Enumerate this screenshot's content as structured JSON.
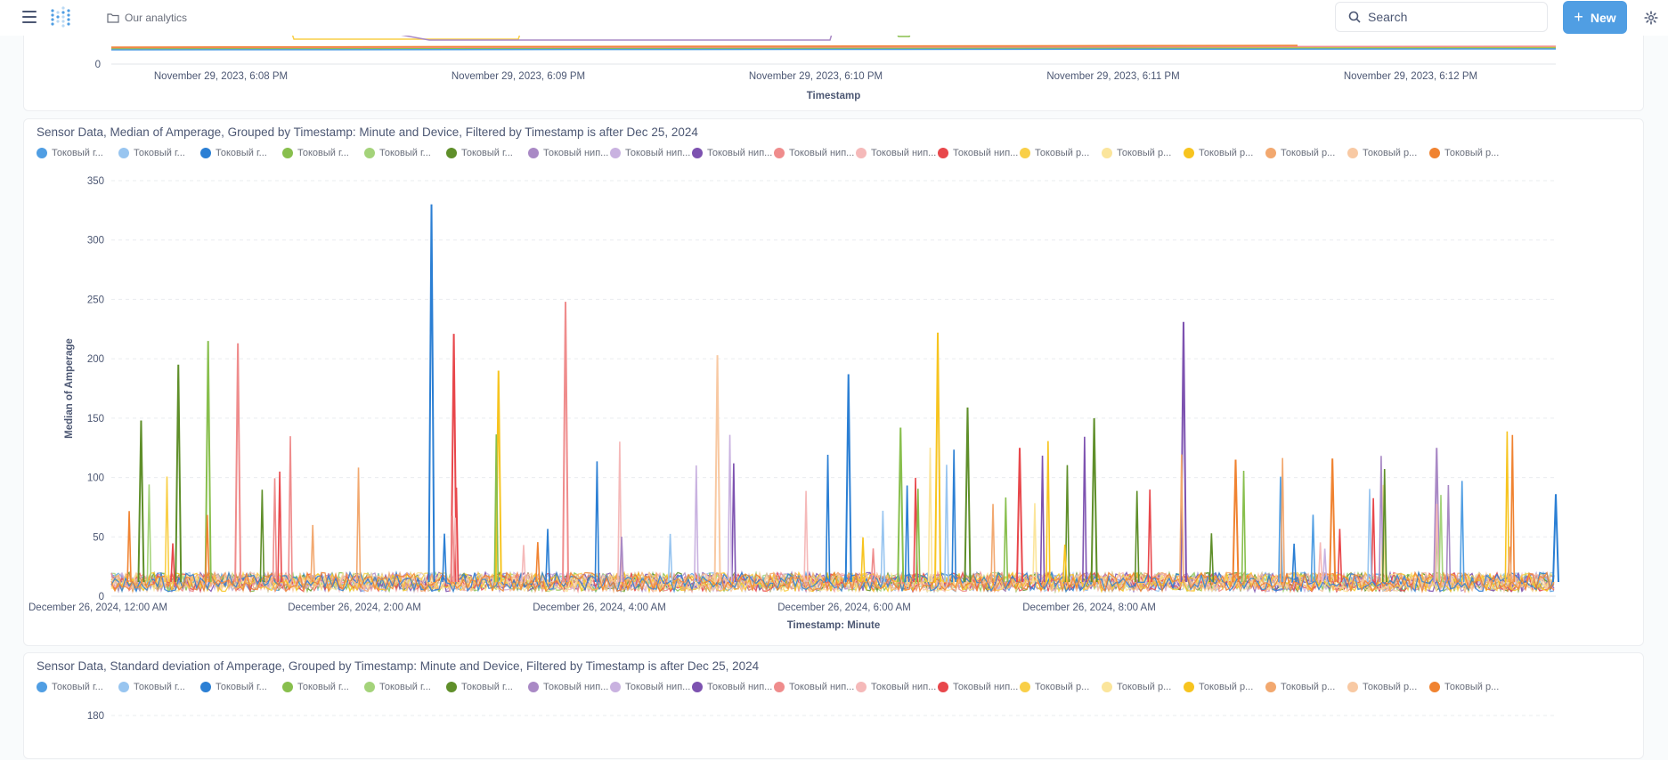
{
  "topbar": {
    "breadcrumb": "Our analytics",
    "search_label": "Search",
    "new_label": "New"
  },
  "colors": {
    "accent": "#509ee3",
    "legend": [
      "#509ee3",
      "#98c5f0",
      "#2b7fd4",
      "#88bf4d",
      "#a4d37a",
      "#5f8f2a",
      "#a989c5",
      "#c9b2e0",
      "#7d52b0",
      "#ef8c8c",
      "#f5b9b9",
      "#e8474b",
      "#f9cf48",
      "#fbe59b",
      "#f7c41f",
      "#f2a86f",
      "#f8c9a3",
      "#f08331"
    ]
  },
  "top_chart": {
    "y_tick": "0",
    "x_ticks": [
      "November 29, 2023, 6:08 PM",
      "November 29, 2023, 6:09 PM",
      "November 29, 2023, 6:10 PM",
      "November 29, 2023, 6:11 PM",
      "November 29, 2023, 6:12 PM"
    ],
    "x_label": "Timestamp"
  },
  "chart_data": [
    {
      "type": "line",
      "title": "Sensor Data, Median of Amperage, Grouped by Timestamp: Minute and Device, Filtered by Timestamp is after Dec 25, 2024",
      "xlabel": "Timestamp: Minute",
      "ylabel": "Median of Amperage",
      "ylim": [
        0,
        350
      ],
      "y_ticks": [
        "350",
        "300",
        "250",
        "200",
        "150",
        "100",
        "50",
        "0"
      ],
      "x_ticks": [
        "December 26, 2024, 12:00 AM",
        "December 26, 2024, 2:00 AM",
        "December 26, 2024, 4:00 AM",
        "December 26, 2024, 6:00 AM",
        "December 26, 2024, 8:00 AM"
      ],
      "grid": true,
      "legend_position": "top",
      "series_names": [
        "Токовый г...",
        "Токовый г...",
        "Токовый г...",
        "Токовый г...",
        "Токовый г...",
        "Токовый г...",
        "Токовый нип...",
        "Токовый нип...",
        "Токовый нип...",
        "Токовый нип...",
        "Токовый нип...",
        "Токовый нип...",
        "Токовый р...",
        "Токовый р...",
        "Токовый р...",
        "Токовый р...",
        "Токовый р...",
        "Токовый р..."
      ],
      "peaks": [
        {
          "x": 0.2,
          "y": 148,
          "series": 5
        },
        {
          "x": 0.45,
          "y": 195,
          "series": 5
        },
        {
          "x": 0.65,
          "y": 215,
          "series": 3
        },
        {
          "x": 0.85,
          "y": 213,
          "series": 9
        },
        {
          "x": 2.15,
          "y": 330,
          "series": 2
        },
        {
          "x": 2.3,
          "y": 221,
          "series": 11
        },
        {
          "x": 2.6,
          "y": 190,
          "series": 14
        },
        {
          "x": 3.05,
          "y": 248,
          "series": 9
        },
        {
          "x": 4.07,
          "y": 203,
          "series": 16
        },
        {
          "x": 4.95,
          "y": 187,
          "series": 2
        },
        {
          "x": 5.3,
          "y": 142,
          "series": 3
        },
        {
          "x": 5.55,
          "y": 222,
          "series": 14
        },
        {
          "x": 5.75,
          "y": 159,
          "series": 5
        },
        {
          "x": 6.1,
          "y": 125,
          "series": 11
        },
        {
          "x": 6.6,
          "y": 150,
          "series": 5
        },
        {
          "x": 7.2,
          "y": 231,
          "series": 8
        },
        {
          "x": 7.55,
          "y": 115,
          "series": 17
        },
        {
          "x": 8.2,
          "y": 116,
          "series": 17
        },
        {
          "x": 8.9,
          "y": 125,
          "series": 6
        },
        {
          "x": 9.7,
          "y": 86,
          "series": 2
        }
      ]
    },
    {
      "type": "line",
      "title": "Sensor Data, Standard deviation of Amperage, Grouped by Timestamp: Minute and Device, Filtered by Timestamp is after Dec 25, 2024",
      "y_ticks": [
        "180"
      ],
      "legend_position": "top",
      "series_names": [
        "Токовый г...",
        "Токовый г...",
        "Токовый г...",
        "Токовый г...",
        "Токовый г...",
        "Токовый г...",
        "Токовый нип...",
        "Токовый нип...",
        "Токовый нип...",
        "Токовый нип...",
        "Токовый нип...",
        "Токовый нип...",
        "Токовый р...",
        "Токовый р...",
        "Токовый р...",
        "Токовый р...",
        "Токовый р...",
        "Токовый р..."
      ]
    }
  ]
}
